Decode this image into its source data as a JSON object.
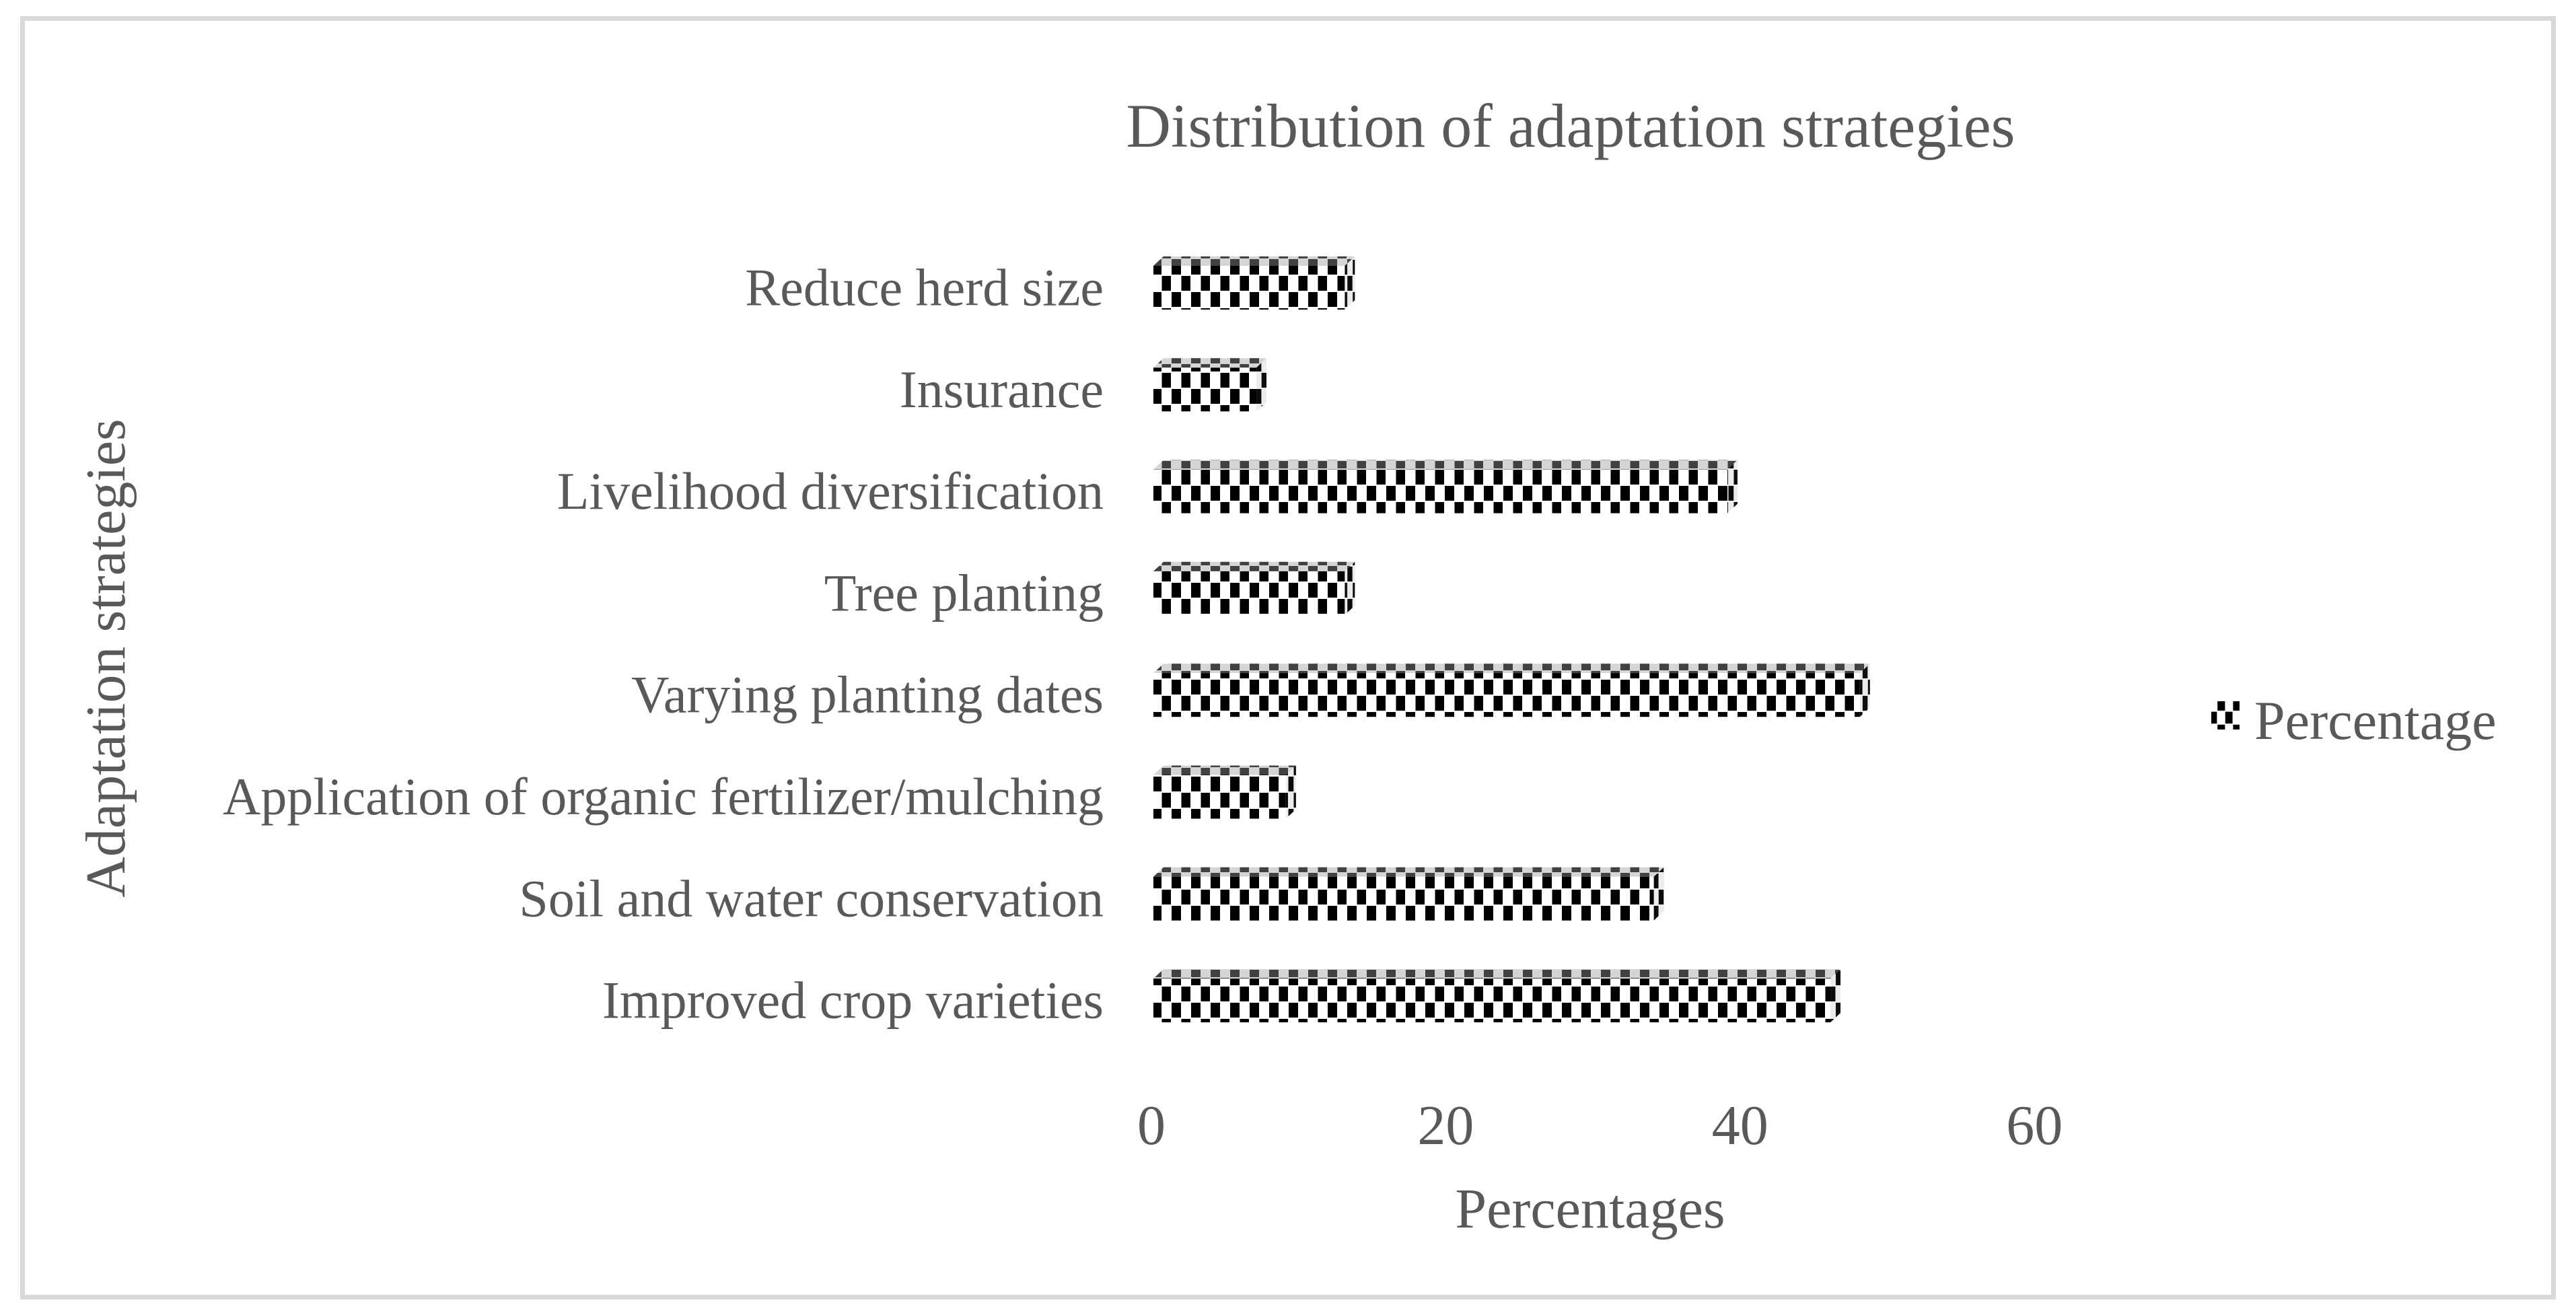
{
  "figure": {
    "background_color": "#ffffff",
    "border_color": "#d9d9d9",
    "text_color": "#595959",
    "pattern_fill_color": "#000000",
    "pattern_background_color": "#ffffff"
  },
  "chart_data": {
    "type": "bar",
    "orientation": "horizontal",
    "effect": "3d",
    "pattern": "black-white checkered pattern fill",
    "title": "Distribution of adaptation strategies",
    "xlabel": "Percentages",
    "ylabel": "Adaptation strategies",
    "categories": [
      "Reduce herd size",
      "Insurance",
      "Livelihood diversification",
      "Tree planting",
      "Varying planting dates",
      "Application of organic fertilizer/mulching",
      "Soil and water conservation",
      "Improved crop varieties"
    ],
    "series": [
      {
        "name": "Percentage",
        "values": [
          13,
          7,
          39,
          13,
          48,
          9,
          34,
          46
        ]
      }
    ],
    "x_ticks": [
      0,
      20,
      40,
      60
    ],
    "xlim": [
      0,
      60
    ],
    "grid": false,
    "legend": {
      "label": "Percentage",
      "position": "right",
      "marker": "checkered-square"
    }
  }
}
